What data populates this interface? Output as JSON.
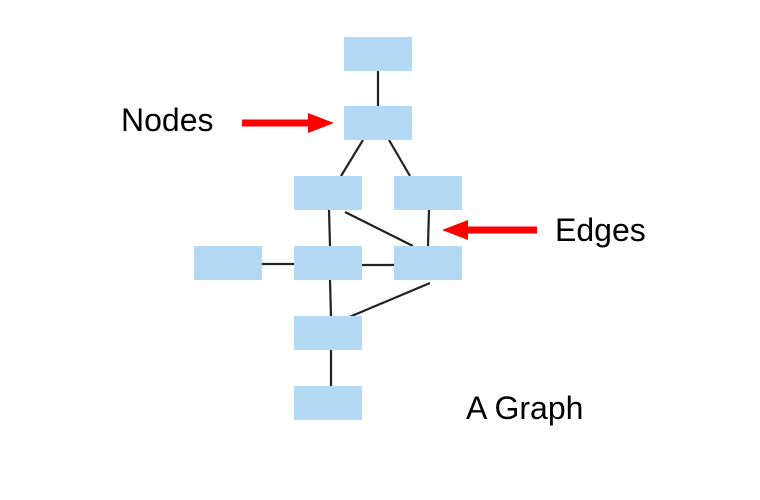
{
  "labels": {
    "nodes": "Nodes",
    "edges": "Edges",
    "caption": "A Graph"
  },
  "colors": {
    "node_fill": "#b3d9f5",
    "edge_stroke": "#222222",
    "arrow": "#ff0000",
    "text": "#000000"
  },
  "graph": {
    "nodes": [
      "n1",
      "n2",
      "n3",
      "n4",
      "n5",
      "n6",
      "n7",
      "n8",
      "n9"
    ],
    "edges": [
      [
        "n1",
        "n2"
      ],
      [
        "n2",
        "n3"
      ],
      [
        "n2",
        "n4"
      ],
      [
        "n3",
        "n6"
      ],
      [
        "n3",
        "n7"
      ],
      [
        "n4",
        "n7"
      ],
      [
        "n5",
        "n6"
      ],
      [
        "n6",
        "n7"
      ],
      [
        "n6",
        "n8"
      ],
      [
        "n7",
        "n8"
      ],
      [
        "n8",
        "n9"
      ]
    ]
  }
}
